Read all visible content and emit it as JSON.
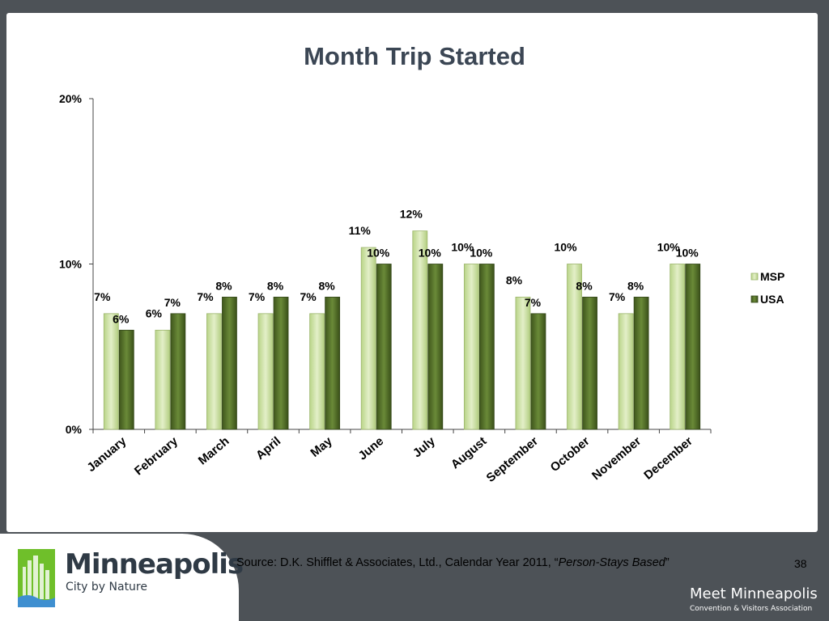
{
  "chart_data": {
    "type": "bar",
    "title": "Month Trip Started",
    "categories": [
      "January",
      "February",
      "March",
      "April",
      "May",
      "June",
      "July",
      "August",
      "September",
      "October",
      "November",
      "December"
    ],
    "series": [
      {
        "name": "MSP",
        "values": [
          7,
          6,
          7,
          7,
          7,
          11,
          12,
          10,
          8,
          10,
          7,
          10
        ]
      },
      {
        "name": "USA",
        "values": [
          6,
          7,
          8,
          8,
          8,
          10,
          10,
          10,
          7,
          8,
          8,
          10
        ]
      }
    ],
    "value_labels": {
      "MSP": [
        "7%",
        "6%",
        "7%",
        "7%",
        "7%",
        "11%",
        "12%",
        "10%",
        "8%",
        "10%",
        "7%",
        "10%"
      ],
      "USA": [
        "6%",
        "7%",
        "8%",
        "8%",
        "8%",
        "10%",
        "10%",
        "10%",
        "7%",
        "8%",
        "8%",
        "10%"
      ]
    },
    "y_ticks": [
      0,
      10,
      20
    ],
    "y_tick_labels": [
      "0%",
      "10%",
      "20%"
    ],
    "ylim": [
      0,
      20
    ],
    "legend_position": "right",
    "grid": false,
    "colors": {
      "MSP": "#cfe3a8",
      "USA": "#56702c"
    }
  },
  "footer": {
    "source_prefix": "Source: D.K. Shifflet & Associates, Ltd., Calendar Year 2011, “",
    "source_italic": "Person-Stays Based",
    "source_suffix": "”",
    "page_number": "38",
    "logo_name": "Minneapolis",
    "logo_tagline": "City by Nature",
    "meet_name": "Meet Minneapolis",
    "meet_sub": "Convention & Visitors Association"
  },
  "icons": [
    "skyline-logo-icon"
  ]
}
